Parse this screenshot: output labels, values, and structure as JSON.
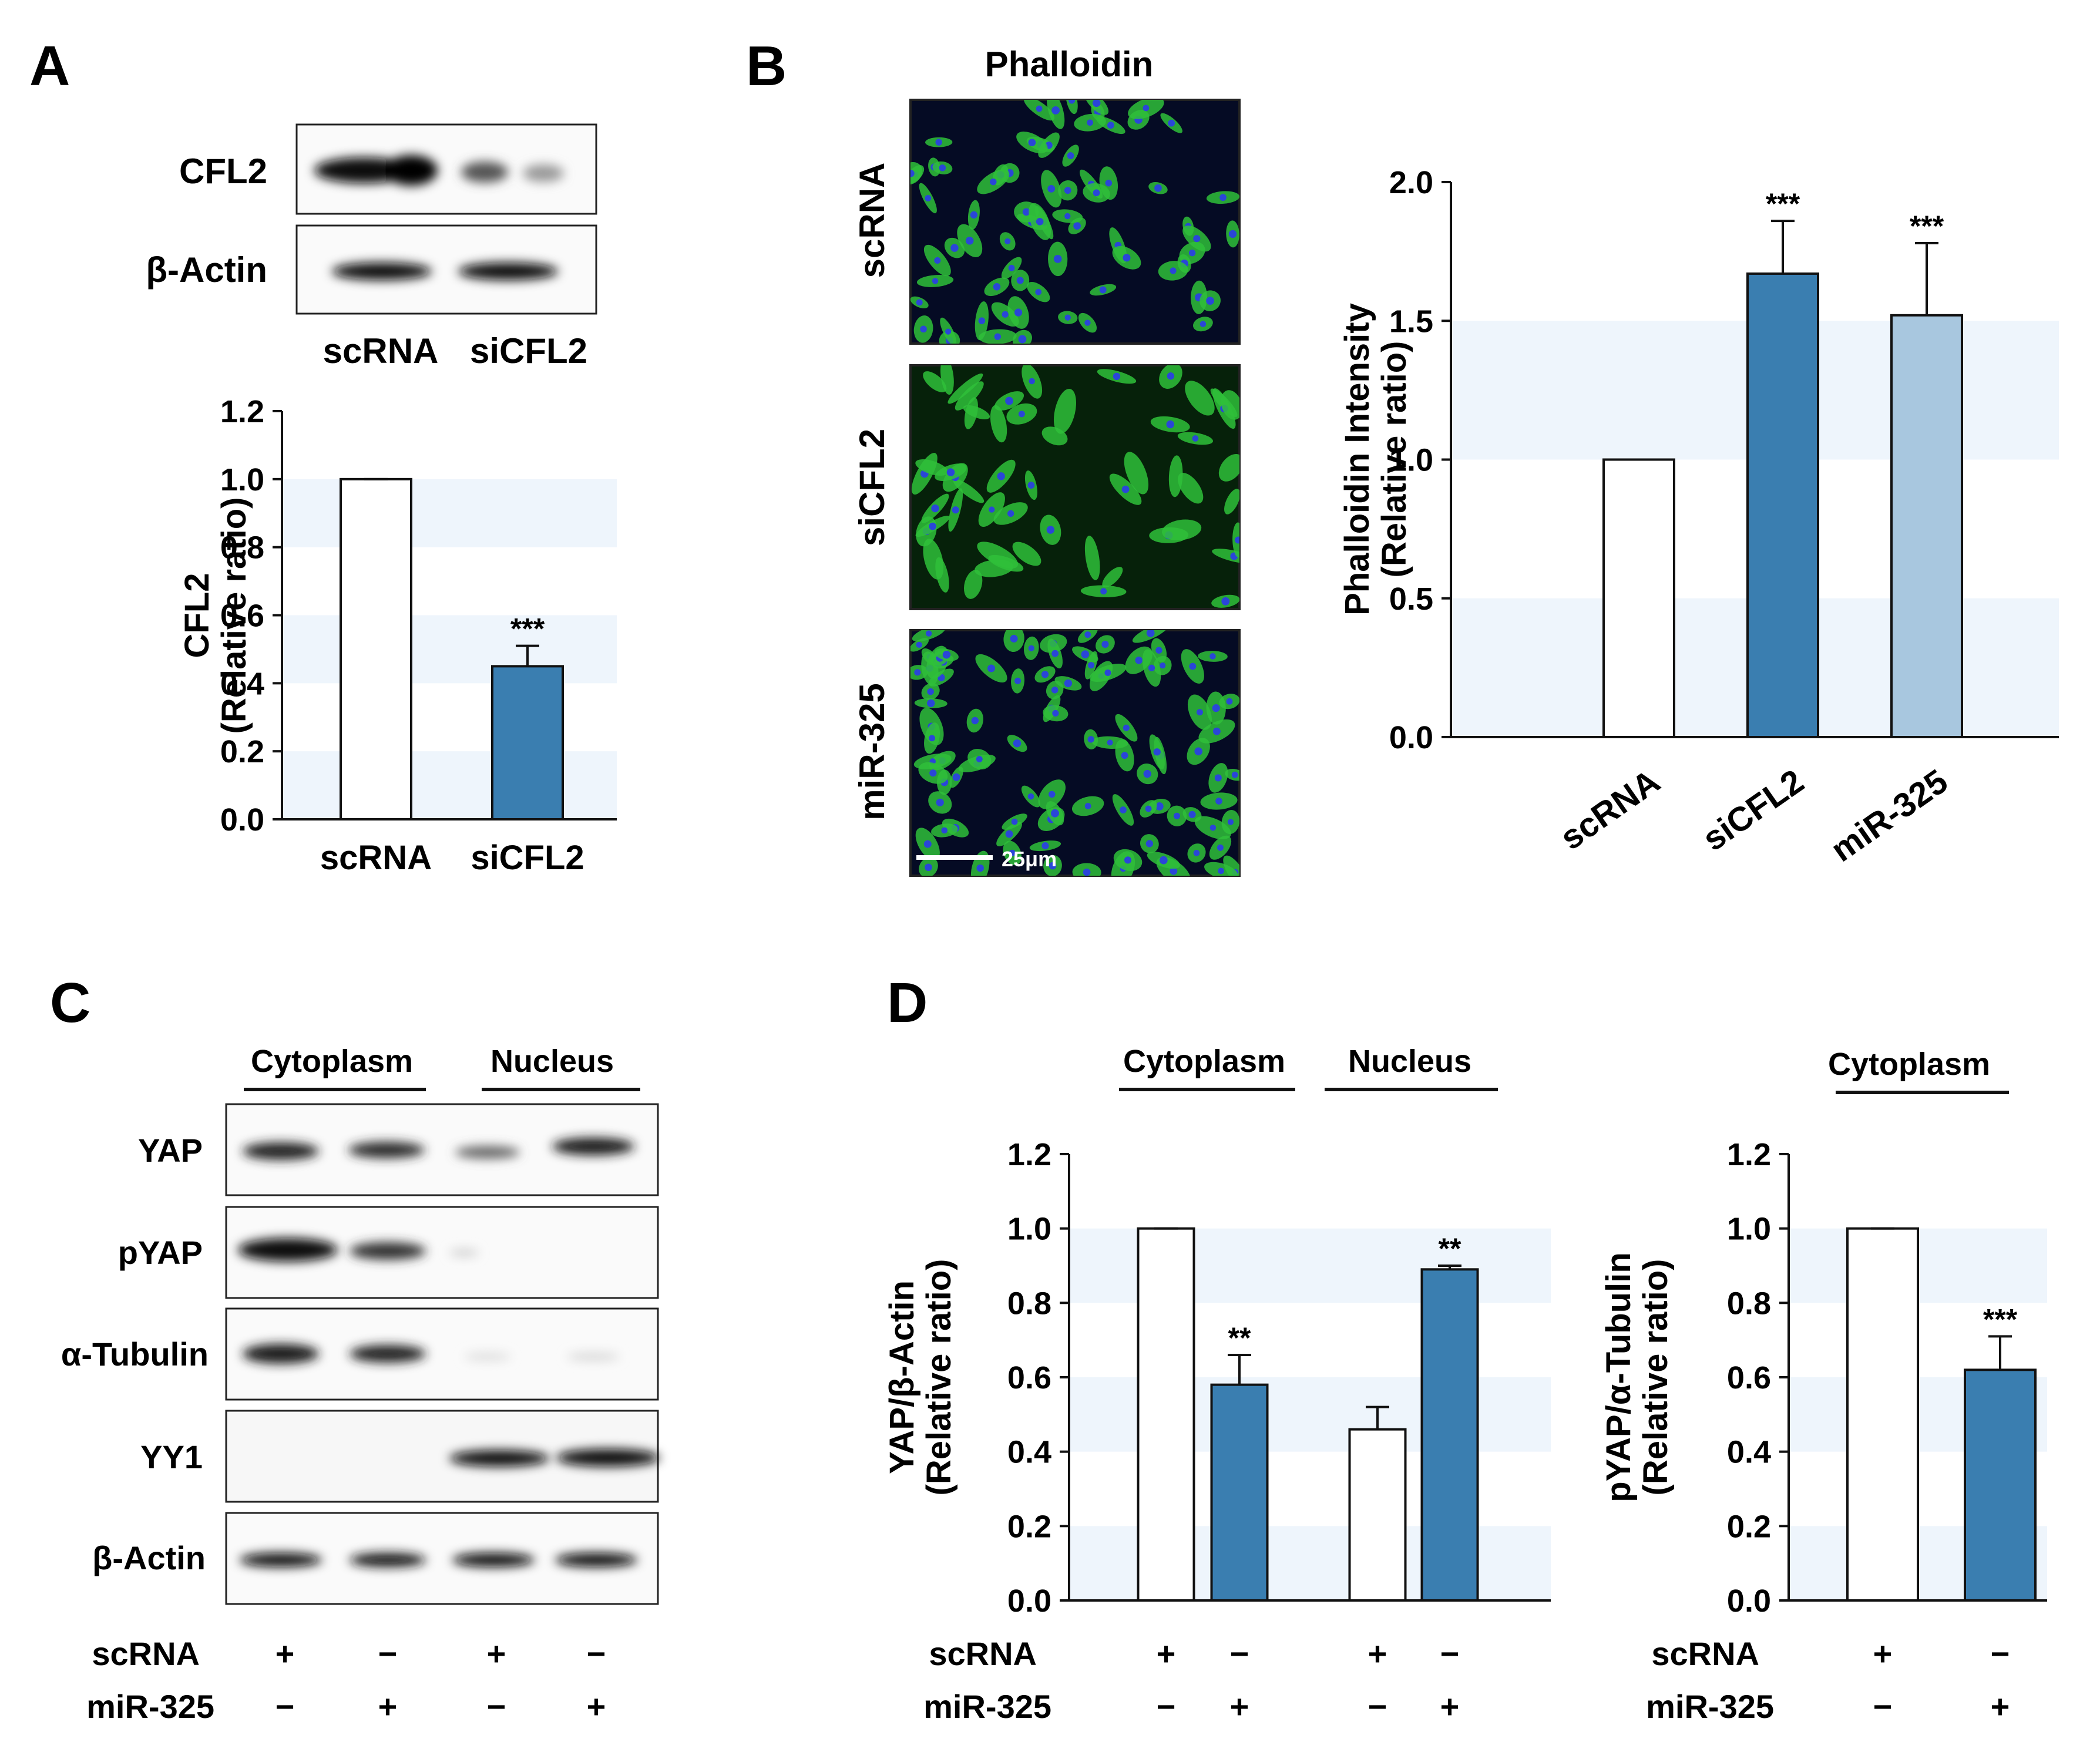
{
  "panels": {
    "A": {
      "letter": "A",
      "blot": {
        "rows": [
          "CFL2",
          "β-Actin"
        ],
        "lanes": [
          "scRNA",
          "siCFL2"
        ]
      }
    },
    "B": {
      "letter": "B",
      "micrograph_title": "Phalloidin",
      "micrograph_rows": [
        "scRNA",
        "siCFL2",
        "miR-325"
      ],
      "scale_bar": "25μm"
    },
    "C": {
      "letter": "C",
      "groups": [
        "Cytoplasm",
        "Nucleus"
      ],
      "rows": [
        "YAP",
        "pYAP",
        "α-Tubulin",
        "YY1",
        "β-Actin"
      ],
      "treatments": [
        {
          "label": "scRNA",
          "signs": [
            "+",
            "−",
            "+",
            "−"
          ]
        },
        {
          "label": "miR-325",
          "signs": [
            "−",
            "+",
            "−",
            "+"
          ]
        }
      ]
    },
    "D": {
      "letter": "D",
      "groups_left": [
        "Cytoplasm",
        "Nucleus"
      ],
      "groups_right": [
        "Cytoplasm"
      ],
      "treatments_left": [
        {
          "label": "scRNA",
          "signs": [
            "+",
            "−",
            "+",
            "−"
          ]
        },
        {
          "label": "miR-325",
          "signs": [
            "−",
            "+",
            "−",
            "+"
          ]
        }
      ],
      "treatments_right": [
        {
          "label": "scRNA",
          "signs": [
            "+",
            "−"
          ]
        },
        {
          "label": "miR-325",
          "signs": [
            "−",
            "+"
          ]
        }
      ]
    }
  },
  "colors": {
    "dark_blue": "#3a7eb0",
    "light_blue": "#a8c7df",
    "white_bar": "#ffffff",
    "band_shade": "#eef5fc",
    "fluor_green": "#2fbf3a",
    "fluor_blue": "#2a46d8"
  },
  "chart_data": [
    {
      "id": "A-bar",
      "type": "bar",
      "title": "",
      "xlabel": "",
      "ylabel": [
        "CFL2",
        "(Relative ratio)"
      ],
      "categories": [
        "scRNA",
        "siCFL2"
      ],
      "values": [
        1.0,
        0.45
      ],
      "errors": [
        0.0,
        0.06
      ],
      "significance": [
        "",
        "***"
      ],
      "bar_colors": [
        "#ffffff",
        "#3a7eb0"
      ],
      "ylim": [
        0,
        1.2
      ],
      "yticks": [
        "0.0",
        "0.2",
        "0.4",
        "0.6",
        "0.8",
        "1.0",
        "1.2"
      ],
      "grid": false
    },
    {
      "id": "B-bar",
      "type": "bar",
      "title": "",
      "xlabel": "",
      "ylabel": [
        "Phalloidin Intensity",
        "(Relative ratio)"
      ],
      "categories": [
        "scRNA",
        "siCFL2",
        "miR-325"
      ],
      "values": [
        1.0,
        1.67,
        1.52
      ],
      "errors": [
        0.0,
        0.19,
        0.26
      ],
      "significance": [
        "",
        "***",
        "***"
      ],
      "bar_colors": [
        "#ffffff",
        "#3a7eb0",
        "#a8c7df"
      ],
      "ylim": [
        0,
        2.0
      ],
      "yticks": [
        "0.0",
        "0.5",
        "1.0",
        "1.5",
        "2.0"
      ],
      "grid": false
    },
    {
      "id": "D-left",
      "type": "bar",
      "title": "",
      "xlabel": "",
      "ylabel": [
        "YAP/β-Actin",
        "(Relative ratio)"
      ],
      "categories": [
        "Cytoplasm scRNA",
        "Cytoplasm miR-325",
        "Nucleus scRNA",
        "Nucleus miR-325"
      ],
      "values": [
        1.0,
        0.58,
        0.46,
        0.89
      ],
      "errors": [
        0.0,
        0.08,
        0.06,
        0.01
      ],
      "significance": [
        "",
        "**",
        "",
        "**"
      ],
      "bar_colors": [
        "#ffffff",
        "#3a7eb0",
        "#ffffff",
        "#3a7eb0"
      ],
      "ylim": [
        0,
        1.2
      ],
      "yticks": [
        "0.0",
        "0.2",
        "0.4",
        "0.6",
        "0.8",
        "1.0",
        "1.2"
      ],
      "grid": false
    },
    {
      "id": "D-right",
      "type": "bar",
      "title": "",
      "xlabel": "",
      "ylabel": [
        "pYAP/α-Tubulin",
        "(Relative ratio)"
      ],
      "categories": [
        "Cytoplasm scRNA",
        "Cytoplasm miR-325"
      ],
      "values": [
        1.0,
        0.62
      ],
      "errors": [
        0.0,
        0.09
      ],
      "significance": [
        "",
        "***"
      ],
      "bar_colors": [
        "#ffffff",
        "#3a7eb0"
      ],
      "ylim": [
        0,
        1.2
      ],
      "yticks": [
        "0.0",
        "0.2",
        "0.4",
        "0.6",
        "0.8",
        "1.0",
        "1.2"
      ],
      "grid": false
    }
  ]
}
